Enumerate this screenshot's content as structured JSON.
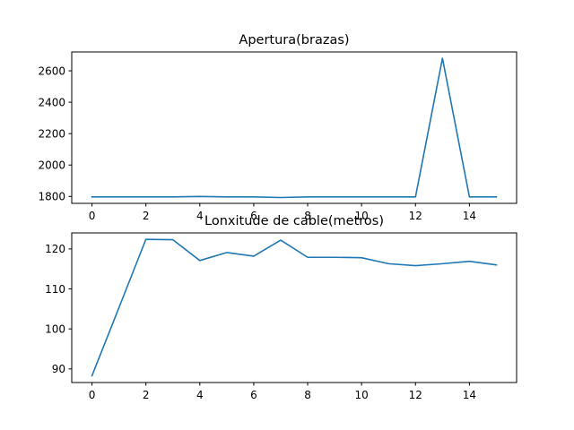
{
  "chart_data": [
    {
      "type": "line",
      "title": "Apertura(brazas)",
      "xlabel": "",
      "ylabel": "",
      "xlim": [
        -0.75,
        15.75
      ],
      "ylim": [
        1756,
        2720
      ],
      "xticks": [
        0,
        2,
        4,
        6,
        8,
        10,
        12,
        14
      ],
      "yticks": [
        1800,
        2000,
        2200,
        2400,
        2600
      ],
      "grid": false,
      "color": "#1f77b4",
      "series": [
        {
          "x": [
            0,
            1,
            2,
            3,
            4,
            5,
            6,
            7,
            8,
            9,
            10,
            11,
            12,
            13,
            14,
            15
          ],
          "values": [
            1797,
            1797,
            1797,
            1797,
            1800,
            1797,
            1797,
            1793,
            1797,
            1797,
            1797,
            1797,
            1797,
            2680,
            1797,
            1797
          ]
        }
      ]
    },
    {
      "type": "line",
      "title": "Lonxitude de cable(metros)",
      "xlabel": "",
      "ylabel": "",
      "xlim": [
        -0.75,
        15.75
      ],
      "ylim": [
        86.6,
        124.0
      ],
      "xticks": [
        0,
        2,
        4,
        6,
        8,
        10,
        12,
        14
      ],
      "yticks": [
        90,
        100,
        110,
        120
      ],
      "grid": false,
      "color": "#1f77b4",
      "series": [
        {
          "x": [
            0,
            1,
            2,
            3,
            4,
            5,
            6,
            7,
            8,
            9,
            10,
            11,
            12,
            13,
            14,
            15
          ],
          "values": [
            88.3,
            105.3,
            122.4,
            122.3,
            117.1,
            119.1,
            118.2,
            122.2,
            117.9,
            117.9,
            117.8,
            116.3,
            115.8,
            116.3,
            116.9,
            116.0
          ]
        }
      ]
    }
  ]
}
